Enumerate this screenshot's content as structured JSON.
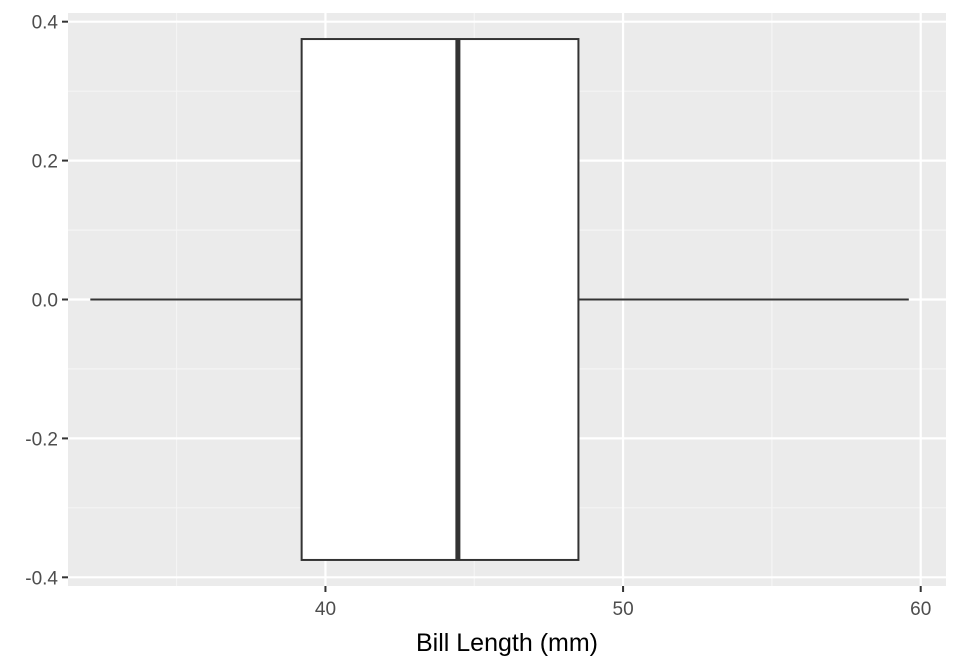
{
  "chart_data": {
    "type": "boxplot",
    "title": "",
    "xlabel": "Bill Length (mm)",
    "ylabel": "",
    "xlim": [
      31.35,
      60.85
    ],
    "ylim": [
      -0.4125,
      0.4125
    ],
    "x_ticks": [
      40,
      50,
      60
    ],
    "x_tick_labels": [
      "40",
      "50",
      "60"
    ],
    "y_ticks": [
      -0.4,
      -0.2,
      0.0,
      0.2,
      0.4
    ],
    "y_tick_labels": [
      "-0.4",
      "-0.2",
      "0.0",
      "0.2",
      "0.4"
    ],
    "grid": true,
    "box": {
      "orientation": "horizontal",
      "whisker_low": 32.1,
      "q1": 39.2,
      "median": 44.45,
      "q3": 48.5,
      "whisker_high": 59.6,
      "half_width": 0.375
    },
    "colors": {
      "panel_background": "#ebebeb",
      "grid_major": "#ffffff",
      "grid_minor": "#f5f5f5",
      "box_fill": "#ffffff",
      "box_stroke": "#333333",
      "tick_mark": "#333333",
      "tick_label": "#4d4d4d",
      "axis_title": "#000000"
    }
  }
}
